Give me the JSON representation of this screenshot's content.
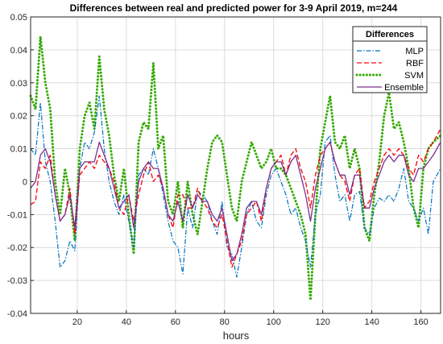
{
  "chart_data": {
    "type": "line",
    "title": "Differences between real and predicted power for 3-9 April 2019, m=244",
    "xlabel": "hours",
    "ylabel": "",
    "xlim": [
      1,
      168
    ],
    "ylim": [
      -0.04,
      0.05
    ],
    "xticks": [
      20,
      40,
      60,
      80,
      100,
      120,
      140,
      160
    ],
    "yticks": [
      -0.04,
      -0.03,
      -0.02,
      -0.01,
      0,
      0.01,
      0.02,
      0.03,
      0.04,
      0.05
    ],
    "ytick_labels": [
      "-0.04",
      "-0.03",
      "-0.02",
      "-0.01",
      "0",
      "0.01",
      "0.02",
      "0.03",
      "0.04",
      "0.05"
    ],
    "grid": true,
    "legend": {
      "title": "Differences",
      "placement": "top-right"
    },
    "colors": {
      "MLP": "#0072bd",
      "RBF": "#ff0000",
      "SVM": "#33aa00",
      "Ensemble": "#7e2f8e"
    },
    "series": [
      {
        "name": "MLP",
        "style": "dash-dot",
        "x": [
          1,
          3,
          5,
          7,
          9,
          11,
          13,
          15,
          17,
          19,
          21,
          23,
          25,
          27,
          29,
          31,
          33,
          35,
          37,
          39,
          41,
          43,
          45,
          47,
          49,
          51,
          53,
          55,
          57,
          59,
          61,
          63,
          65,
          67,
          69,
          71,
          73,
          75,
          77,
          79,
          81,
          83,
          85,
          87,
          89,
          91,
          93,
          95,
          97,
          99,
          101,
          103,
          105,
          107,
          109,
          111,
          113,
          115,
          117,
          119,
          121,
          123,
          125,
          127,
          129,
          131,
          133,
          135,
          137,
          139,
          141,
          143,
          145,
          147,
          149,
          151,
          153,
          155,
          157,
          159,
          161,
          163,
          165,
          168
        ],
        "y": [
          0.01,
          0.008,
          0.024,
          0.006,
          0.0,
          -0.012,
          -0.026,
          -0.024,
          -0.018,
          -0.021,
          0.004,
          0.012,
          0.01,
          0.015,
          0.026,
          0.01,
          0.0,
          -0.006,
          -0.01,
          -0.004,
          -0.012,
          -0.02,
          0.002,
          0.004,
          0.002,
          0.01,
          0.004,
          -0.004,
          -0.012,
          -0.018,
          -0.02,
          -0.028,
          -0.008,
          -0.014,
          -0.003,
          -0.004,
          -0.006,
          -0.012,
          -0.016,
          -0.006,
          -0.02,
          -0.022,
          -0.029,
          -0.02,
          -0.01,
          -0.006,
          -0.012,
          -0.014,
          -0.004,
          0.002,
          0.004,
          0.0,
          -0.004,
          -0.01,
          -0.008,
          -0.014,
          -0.018,
          -0.026,
          -0.01,
          -0.004,
          0.012,
          0.014,
          0.002,
          -0.006,
          -0.004,
          -0.012,
          -0.004,
          -0.003,
          -0.014,
          -0.016,
          -0.008,
          -0.005,
          -0.006,
          -0.004,
          -0.006,
          -0.002,
          0.004,
          -0.006,
          -0.008,
          -0.012,
          -0.008,
          -0.016,
          0.0,
          0.004
        ]
      },
      {
        "name": "RBF",
        "style": "dashed",
        "x": [
          1,
          3,
          5,
          7,
          9,
          11,
          13,
          15,
          17,
          19,
          21,
          23,
          25,
          27,
          29,
          31,
          33,
          35,
          37,
          39,
          41,
          43,
          45,
          47,
          49,
          51,
          53,
          55,
          57,
          59,
          61,
          63,
          65,
          67,
          69,
          71,
          73,
          75,
          77,
          79,
          81,
          83,
          85,
          87,
          89,
          91,
          93,
          95,
          97,
          99,
          101,
          103,
          105,
          107,
          109,
          111,
          113,
          115,
          117,
          119,
          121,
          123,
          125,
          127,
          129,
          131,
          133,
          135,
          137,
          139,
          141,
          143,
          145,
          147,
          149,
          151,
          153,
          155,
          157,
          159,
          161,
          163,
          165,
          168
        ],
        "y": [
          -0.007,
          -0.006,
          0.006,
          0.004,
          0.008,
          -0.004,
          -0.012,
          -0.01,
          -0.002,
          -0.016,
          0.002,
          0.004,
          0.006,
          0.004,
          0.008,
          0.006,
          0.004,
          0.0,
          -0.008,
          -0.01,
          -0.004,
          -0.012,
          -0.004,
          0.002,
          0.006,
          0.0,
          0.002,
          -0.002,
          -0.01,
          -0.014,
          -0.004,
          -0.004,
          -0.008,
          -0.008,
          -0.002,
          -0.006,
          -0.008,
          -0.012,
          -0.014,
          -0.01,
          -0.018,
          -0.026,
          -0.022,
          -0.018,
          -0.01,
          -0.008,
          -0.006,
          -0.012,
          -0.002,
          0.004,
          0.006,
          0.008,
          0.002,
          0.008,
          0.01,
          0.004,
          0.0,
          -0.008,
          0.002,
          0.008,
          0.01,
          0.012,
          0.006,
          0.002,
          0.0,
          -0.006,
          0.002,
          0.004,
          -0.008,
          -0.006,
          0.0,
          0.004,
          0.008,
          0.01,
          0.008,
          0.01,
          0.008,
          0.004,
          0.002,
          0.008,
          0.006,
          0.01,
          0.012,
          0.016
        ]
      },
      {
        "name": "SVM",
        "style": "dotted",
        "x": [
          1,
          3,
          5,
          7,
          9,
          11,
          13,
          15,
          17,
          19,
          21,
          23,
          25,
          27,
          29,
          31,
          33,
          35,
          37,
          39,
          41,
          43,
          45,
          47,
          49,
          51,
          53,
          55,
          57,
          59,
          61,
          63,
          65,
          67,
          69,
          71,
          73,
          75,
          77,
          79,
          81,
          83,
          85,
          87,
          89,
          91,
          93,
          95,
          97,
          99,
          101,
          103,
          105,
          107,
          109,
          111,
          113,
          115,
          117,
          119,
          121,
          123,
          125,
          127,
          129,
          131,
          133,
          135,
          137,
          139,
          141,
          143,
          145,
          147,
          149,
          151,
          153,
          155,
          157,
          159,
          161,
          163,
          165,
          168
        ],
        "y": [
          0.026,
          0.022,
          0.044,
          0.03,
          0.022,
          0.0,
          -0.01,
          0.004,
          -0.004,
          -0.018,
          0.01,
          0.02,
          0.024,
          0.016,
          0.038,
          0.022,
          0.014,
          0.002,
          -0.006,
          0.004,
          -0.01,
          -0.022,
          0.012,
          0.018,
          0.016,
          0.036,
          0.01,
          0.014,
          -0.006,
          -0.01,
          0.0,
          -0.014,
          0.0,
          -0.01,
          -0.016,
          -0.006,
          0.004,
          0.012,
          0.014,
          0.012,
          0.002,
          -0.008,
          -0.012,
          0.0,
          0.006,
          0.012,
          0.008,
          0.004,
          0.006,
          0.01,
          0.004,
          0.004,
          0.002,
          -0.002,
          -0.006,
          -0.01,
          -0.016,
          -0.036,
          -0.01,
          0.01,
          0.018,
          0.026,
          0.012,
          0.01,
          0.014,
          0.004,
          0.01,
          0.004,
          -0.014,
          -0.018,
          -0.004,
          0.006,
          0.02,
          0.027,
          0.016,
          0.018,
          0.012,
          0.004,
          -0.008,
          -0.014,
          0.004,
          0.01,
          0.012,
          0.014
        ]
      },
      {
        "name": "Ensemble",
        "style": "solid",
        "x": [
          1,
          3,
          5,
          7,
          9,
          11,
          13,
          15,
          17,
          19,
          21,
          23,
          25,
          27,
          29,
          31,
          33,
          35,
          37,
          39,
          41,
          43,
          45,
          47,
          49,
          51,
          53,
          55,
          57,
          59,
          61,
          63,
          65,
          67,
          69,
          71,
          73,
          75,
          77,
          79,
          81,
          83,
          85,
          87,
          89,
          91,
          93,
          95,
          97,
          99,
          101,
          103,
          105,
          107,
          109,
          111,
          113,
          115,
          117,
          119,
          121,
          123,
          125,
          127,
          129,
          131,
          133,
          135,
          137,
          139,
          141,
          143,
          145,
          147,
          149,
          151,
          153,
          155,
          157,
          159,
          161,
          163,
          165,
          168
        ],
        "y": [
          -0.002,
          0.0,
          0.008,
          0.01,
          0.006,
          -0.004,
          -0.012,
          -0.01,
          -0.004,
          -0.014,
          0.004,
          0.006,
          0.006,
          0.006,
          0.012,
          0.008,
          0.004,
          -0.002,
          -0.008,
          -0.006,
          -0.004,
          -0.014,
          0.0,
          0.004,
          0.006,
          0.004,
          0.004,
          -0.002,
          -0.01,
          -0.012,
          -0.006,
          -0.012,
          -0.004,
          -0.008,
          -0.004,
          -0.006,
          -0.006,
          -0.01,
          -0.012,
          -0.008,
          -0.016,
          -0.024,
          -0.022,
          -0.016,
          -0.008,
          -0.006,
          -0.006,
          -0.01,
          -0.002,
          0.004,
          0.006,
          0.006,
          0.002,
          0.006,
          0.008,
          0.002,
          -0.004,
          -0.012,
          -0.002,
          0.004,
          0.01,
          0.012,
          0.006,
          0.002,
          0.002,
          -0.004,
          0.002,
          0.002,
          -0.008,
          -0.008,
          -0.002,
          0.002,
          0.006,
          0.008,
          0.006,
          0.008,
          0.008,
          0.002,
          0.0,
          0.004,
          0.004,
          0.006,
          0.008,
          0.012
        ]
      }
    ]
  }
}
